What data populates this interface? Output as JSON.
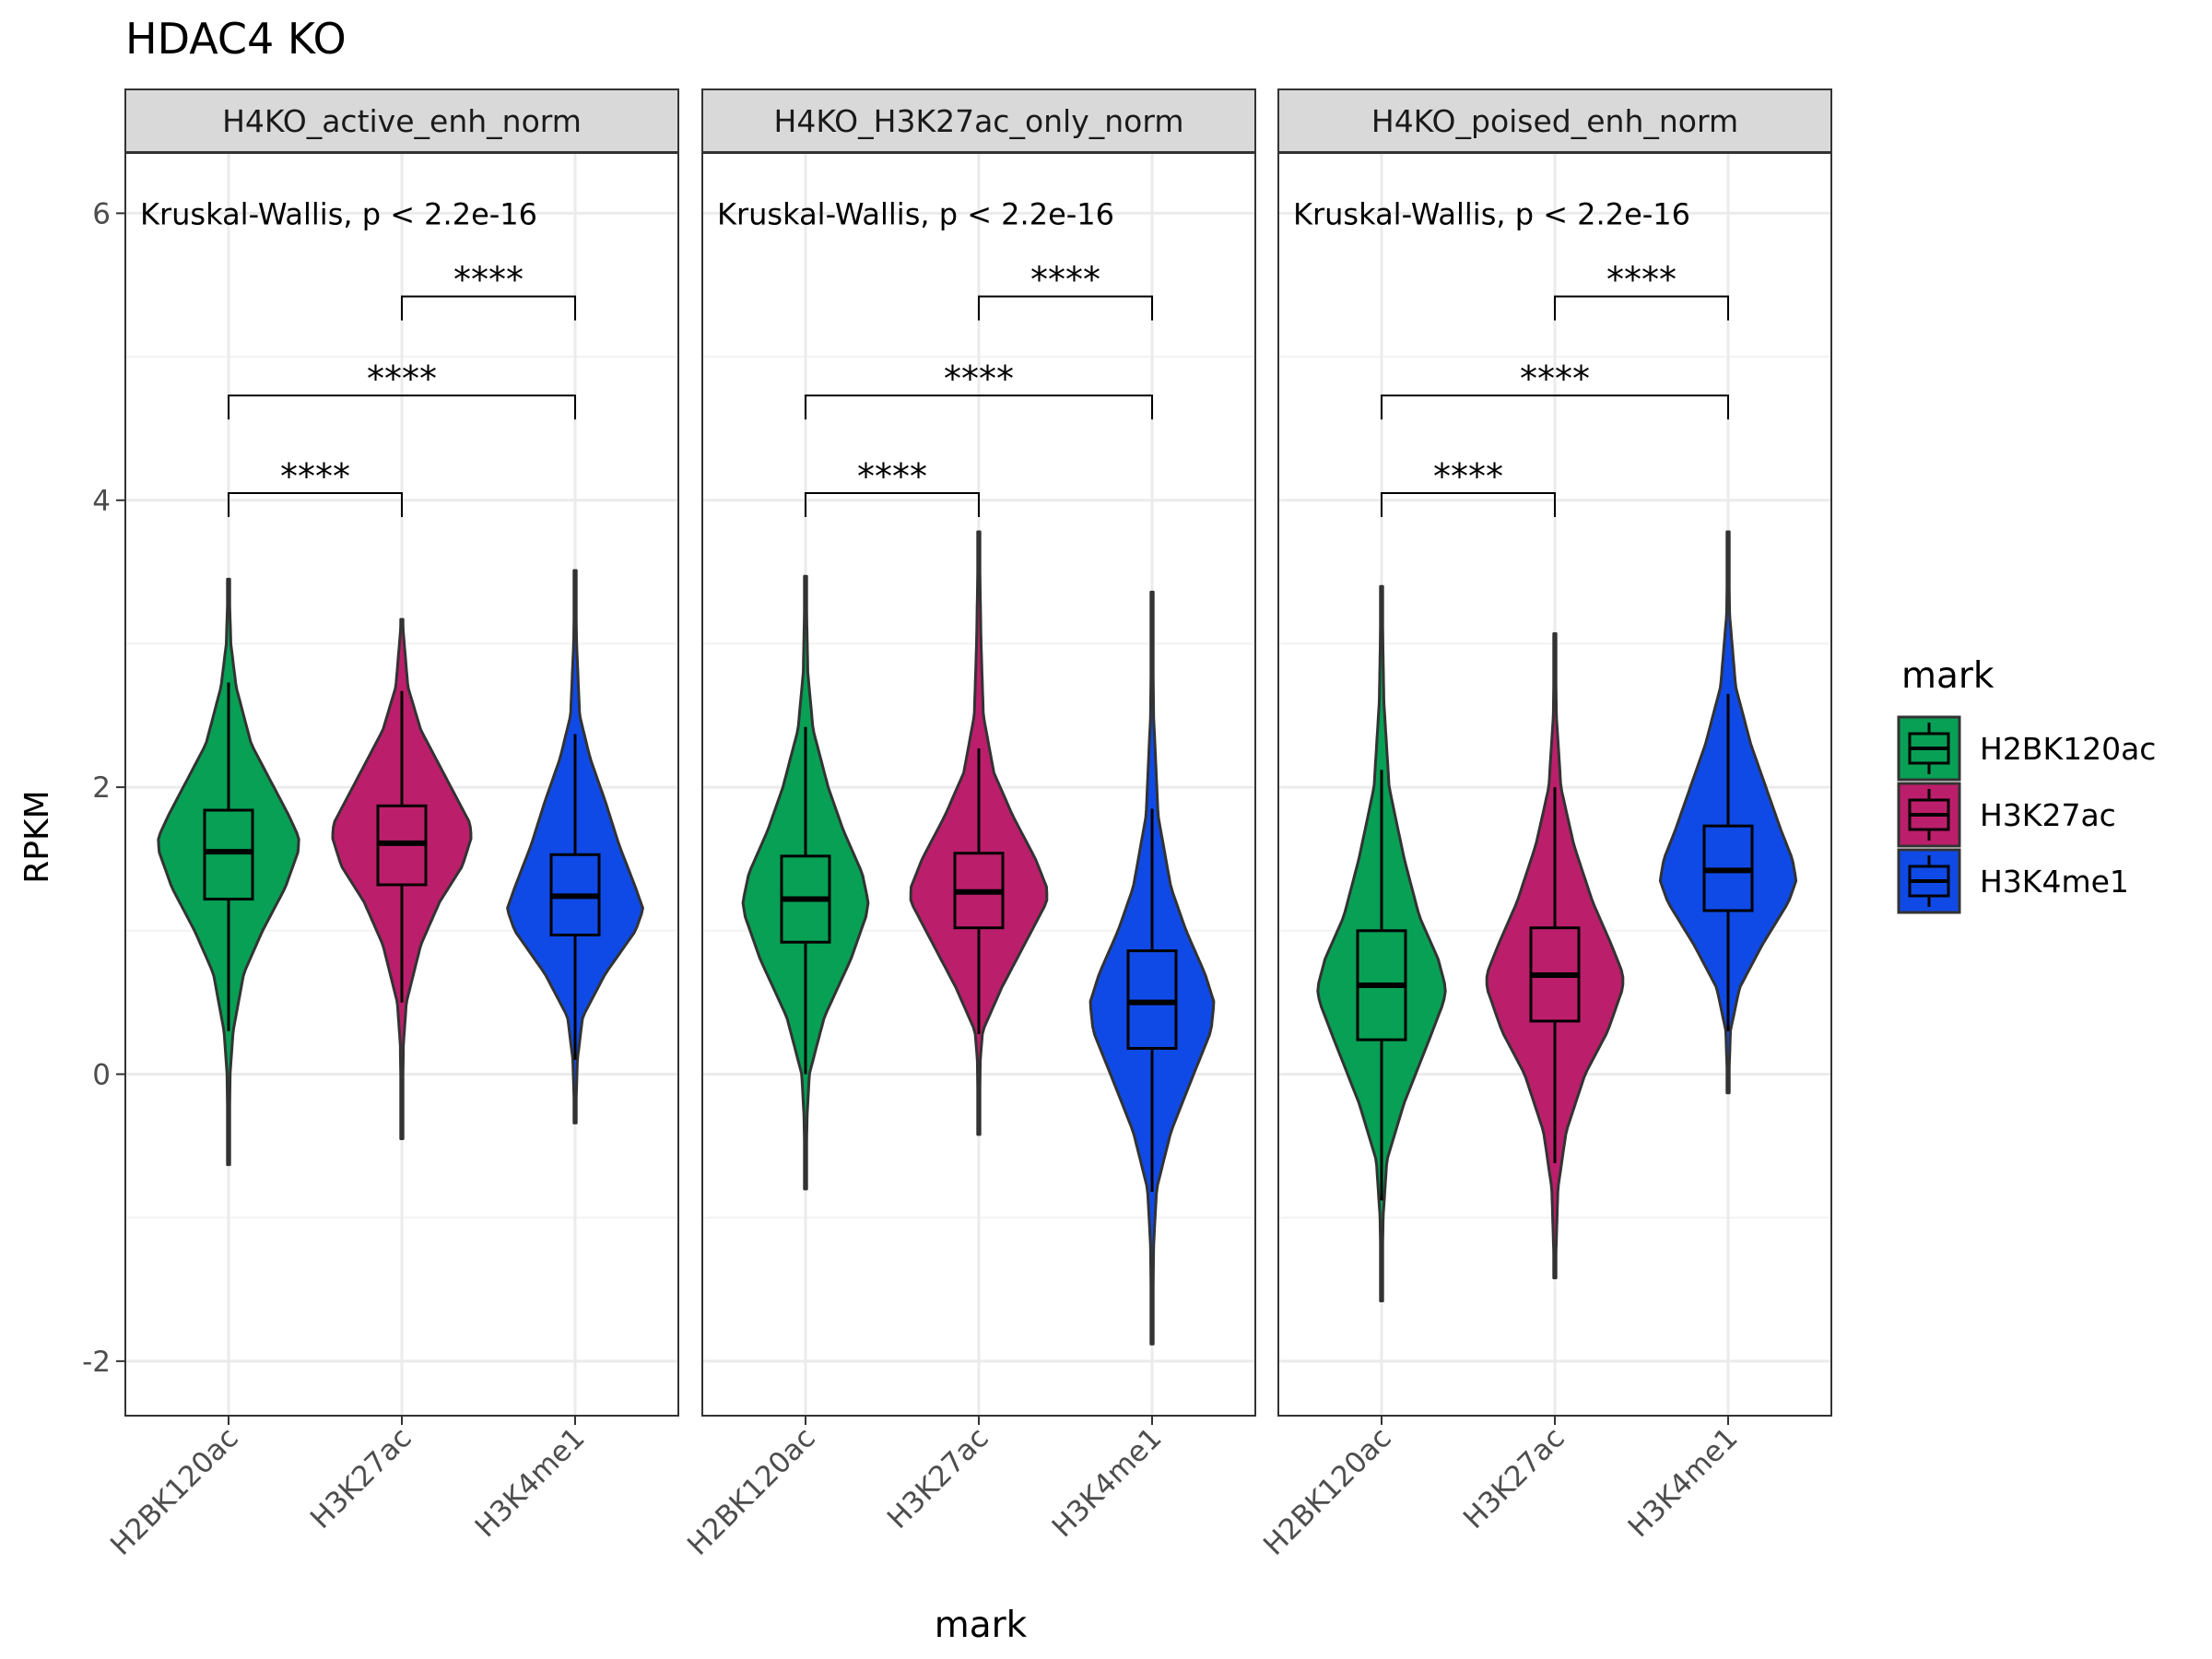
{
  "chart_data": {
    "type": "violin",
    "title": "HDAC4 KO",
    "xlabel": "mark",
    "ylabel": "RPKM",
    "ylim": [
      -2.38,
      6.42
    ],
    "yticks": [
      -2,
      0,
      2,
      4,
      6
    ],
    "categories": [
      "H2BK120ac",
      "H3K27ac",
      "H3K4me1"
    ],
    "grid": true,
    "legend": {
      "title": "mark",
      "position": "right",
      "items": [
        {
          "label": "H2BK120ac",
          "color": "#07A055"
        },
        {
          "label": "H3K27ac",
          "color": "#BB1F6B"
        },
        {
          "label": "H3K4me1",
          "color": "#104AE6"
        }
      ]
    },
    "comparisons": [
      {
        "from": 0,
        "to": 1,
        "y": 4.05,
        "label": "****"
      },
      {
        "from": 0,
        "to": 2,
        "y": 4.73,
        "label": "****"
      },
      {
        "from": 1,
        "to": 2,
        "y": 5.42,
        "label": "****"
      }
    ],
    "panels": [
      {
        "strip": "H4KO_active_enh_norm",
        "test_label": "Kruskal-Wallis, p < 2.2e-16",
        "series": [
          {
            "name": "H2BK120ac",
            "min": -0.63,
            "max": 3.45,
            "q1": 1.22,
            "median": 1.55,
            "q3": 1.84,
            "wmin": 0.3,
            "wmax": 2.73,
            "profile": [
              [
                -0.63,
                0.005
              ],
              [
                0,
                0.02
              ],
              [
                0.3,
                0.06
              ],
              [
                0.7,
                0.2
              ],
              [
                1.0,
                0.45
              ],
              [
                1.3,
                0.75
              ],
              [
                1.55,
                0.92
              ],
              [
                1.65,
                0.93
              ],
              [
                1.8,
                0.8
              ],
              [
                2.0,
                0.6
              ],
              [
                2.3,
                0.3
              ],
              [
                2.7,
                0.1
              ],
              [
                3.0,
                0.03
              ],
              [
                3.45,
                0.005
              ]
            ]
          },
          {
            "name": "H3K27ac",
            "min": -0.45,
            "max": 3.17,
            "q1": 1.32,
            "median": 1.61,
            "q3": 1.87,
            "wmin": 0.5,
            "wmax": 2.67,
            "profile": [
              [
                -0.45,
                0.005
              ],
              [
                0.2,
                0.02
              ],
              [
                0.5,
                0.06
              ],
              [
                0.9,
                0.25
              ],
              [
                1.2,
                0.5
              ],
              [
                1.45,
                0.8
              ],
              [
                1.65,
                0.92
              ],
              [
                1.75,
                0.9
              ],
              [
                1.9,
                0.75
              ],
              [
                2.1,
                0.55
              ],
              [
                2.4,
                0.25
              ],
              [
                2.7,
                0.08
              ],
              [
                3.17,
                0.005
              ]
            ]
          },
          {
            "name": "H3K4me1",
            "min": -0.34,
            "max": 3.51,
            "q1": 0.97,
            "median": 1.24,
            "q3": 1.53,
            "wmin": 0.1,
            "wmax": 2.37,
            "profile": [
              [
                -0.34,
                0.005
              ],
              [
                0.1,
                0.03
              ],
              [
                0.4,
                0.1
              ],
              [
                0.7,
                0.4
              ],
              [
                1.0,
                0.8
              ],
              [
                1.15,
                0.9
              ],
              [
                1.3,
                0.8
              ],
              [
                1.6,
                0.58
              ],
              [
                1.9,
                0.4
              ],
              [
                2.2,
                0.2
              ],
              [
                2.5,
                0.06
              ],
              [
                3.0,
                0.02
              ],
              [
                3.51,
                0.005
              ]
            ]
          }
        ]
      },
      {
        "strip": "H4KO_H3K27ac_only_norm",
        "test_label": "Kruskal-Wallis, p < 2.2e-16",
        "series": [
          {
            "name": "H2BK120ac",
            "min": -0.8,
            "max": 3.47,
            "q1": 0.92,
            "median": 1.22,
            "q3": 1.52,
            "wmin": 0.0,
            "wmax": 2.42,
            "profile": [
              [
                -0.8,
                0.005
              ],
              [
                -0.3,
                0.02
              ],
              [
                0,
                0.05
              ],
              [
                0.4,
                0.25
              ],
              [
                0.8,
                0.6
              ],
              [
                1.1,
                0.8
              ],
              [
                1.2,
                0.83
              ],
              [
                1.4,
                0.75
              ],
              [
                1.7,
                0.5
              ],
              [
                2.0,
                0.3
              ],
              [
                2.4,
                0.1
              ],
              [
                2.8,
                0.03
              ],
              [
                3.47,
                0.005
              ]
            ]
          },
          {
            "name": "H3K27ac",
            "min": -0.42,
            "max": 3.78,
            "q1": 1.02,
            "median": 1.27,
            "q3": 1.54,
            "wmin": 0.28,
            "wmax": 2.27,
            "profile": [
              [
                -0.42,
                0.005
              ],
              [
                0.1,
                0.02
              ],
              [
                0.3,
                0.05
              ],
              [
                0.6,
                0.3
              ],
              [
                0.9,
                0.6
              ],
              [
                1.2,
                0.9
              ],
              [
                1.3,
                0.9
              ],
              [
                1.5,
                0.75
              ],
              [
                1.8,
                0.45
              ],
              [
                2.1,
                0.2
              ],
              [
                2.5,
                0.06
              ],
              [
                3.0,
                0.03
              ],
              [
                3.78,
                0.005
              ]
            ]
          },
          {
            "name": "H3K4me1",
            "min": -1.88,
            "max": 3.36,
            "q1": 0.18,
            "median": 0.5,
            "q3": 0.86,
            "wmin": -0.82,
            "wmax": 1.85,
            "profile": [
              [
                -1.88,
                0.005
              ],
              [
                -1.2,
                0.02
              ],
              [
                -0.8,
                0.06
              ],
              [
                -0.4,
                0.25
              ],
              [
                0,
                0.55
              ],
              [
                0.3,
                0.78
              ],
              [
                0.5,
                0.82
              ],
              [
                0.7,
                0.7
              ],
              [
                1.0,
                0.45
              ],
              [
                1.3,
                0.25
              ],
              [
                1.8,
                0.08
              ],
              [
                2.5,
                0.02
              ],
              [
                3.36,
                0.005
              ]
            ]
          }
        ]
      },
      {
        "strip": "H4KO_poised_enh_norm",
        "test_label": "Kruskal-Wallis, p < 2.2e-16",
        "series": [
          {
            "name": "H2BK120ac",
            "min": -1.58,
            "max": 3.4,
            "q1": 0.24,
            "median": 0.62,
            "q3": 1.0,
            "wmin": -0.88,
            "wmax": 2.12,
            "profile": [
              [
                -1.58,
                0.005
              ],
              [
                -1.0,
                0.02
              ],
              [
                -0.6,
                0.07
              ],
              [
                -0.2,
                0.3
              ],
              [
                0.2,
                0.6
              ],
              [
                0.5,
                0.82
              ],
              [
                0.6,
                0.85
              ],
              [
                0.8,
                0.75
              ],
              [
                1.1,
                0.5
              ],
              [
                1.5,
                0.3
              ],
              [
                2.0,
                0.1
              ],
              [
                2.6,
                0.03
              ],
              [
                3.4,
                0.005
              ]
            ]
          },
          {
            "name": "H3K27ac",
            "min": -1.42,
            "max": 3.07,
            "q1": 0.37,
            "median": 0.69,
            "q3": 1.02,
            "wmin": -0.62,
            "wmax": 2.0,
            "profile": [
              [
                -1.42,
                0.005
              ],
              [
                -0.8,
                0.04
              ],
              [
                -0.4,
                0.15
              ],
              [
                0,
                0.4
              ],
              [
                0.3,
                0.7
              ],
              [
                0.6,
                0.9
              ],
              [
                0.7,
                0.9
              ],
              [
                0.9,
                0.75
              ],
              [
                1.2,
                0.5
              ],
              [
                1.6,
                0.25
              ],
              [
                2.0,
                0.08
              ],
              [
                2.5,
                0.02
              ],
              [
                3.07,
                0.005
              ]
            ]
          },
          {
            "name": "H3K4me1",
            "min": -0.13,
            "max": 3.78,
            "q1": 1.14,
            "median": 1.42,
            "q3": 1.73,
            "wmin": 0.3,
            "wmax": 2.65,
            "profile": [
              [
                -0.13,
                0.005
              ],
              [
                0.3,
                0.03
              ],
              [
                0.6,
                0.15
              ],
              [
                0.9,
                0.45
              ],
              [
                1.2,
                0.8
              ],
              [
                1.35,
                0.9
              ],
              [
                1.5,
                0.85
              ],
              [
                1.7,
                0.7
              ],
              [
                2.0,
                0.5
              ],
              [
                2.3,
                0.3
              ],
              [
                2.7,
                0.1
              ],
              [
                3.2,
                0.02
              ],
              [
                3.78,
                0.005
              ]
            ]
          }
        ]
      }
    ]
  }
}
